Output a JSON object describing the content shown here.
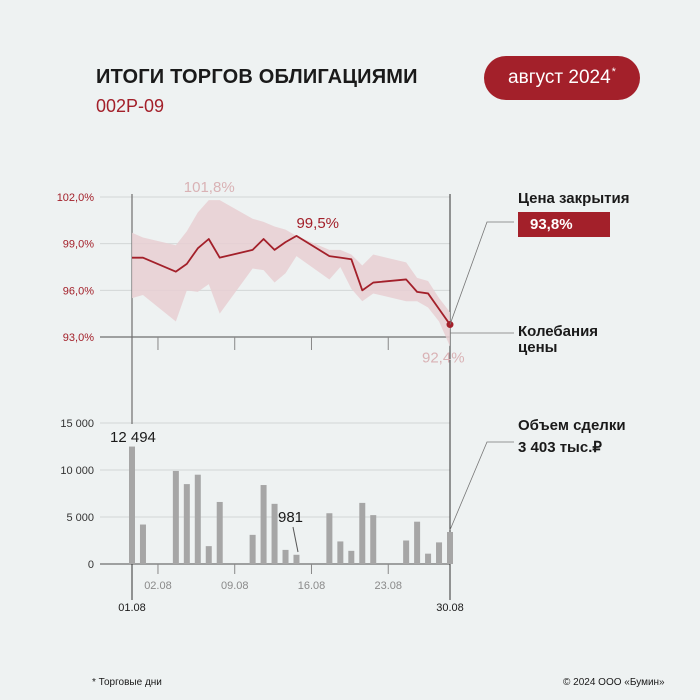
{
  "header": {
    "title": "ИТОГИ ТОРГОВ ОБЛИГАЦИЯМИ",
    "subtitle": "002Р-09",
    "badge_text": "август 2024",
    "badge_mark": "*"
  },
  "legend": {
    "close_price_label": "Цена закрытия",
    "close_price_value": "93,8%",
    "volatility_label_1": "Колебания",
    "volatility_label_2": "цены",
    "volume_label": "Объем сделки",
    "volume_value": "3 403 тыс.₽"
  },
  "footer": {
    "note": "* Торговые дни",
    "copyright": "© 2024 ООО «Бумин»"
  },
  "colors": {
    "accent": "#a3202a",
    "band": "#e8cfd2",
    "bar": "#a6a6a6",
    "muted": "#d9b2b5"
  },
  "chart_data": [
    {
      "type": "line",
      "ylabel": "",
      "ylim": [
        93,
        102
      ],
      "yticks": [
        "102,0%",
        "99,0%",
        "96,0%",
        "93,0%"
      ],
      "ytick_values": [
        102,
        99,
        96,
        93
      ],
      "x": [
        1,
        2,
        5,
        6,
        7,
        8,
        9,
        12,
        13,
        14,
        15,
        16,
        19,
        20,
        21,
        22,
        23,
        26,
        27,
        28,
        29,
        30
      ],
      "close": [
        98.1,
        98.1,
        97.2,
        97.7,
        98.7,
        99.3,
        98.1,
        98.6,
        99.3,
        98.6,
        99.1,
        99.5,
        98.2,
        98.1,
        98.0,
        96.0,
        96.5,
        96.7,
        95.9,
        95.8,
        94.8,
        93.8
      ],
      "high": [
        99.7,
        99.4,
        98.9,
        99.8,
        101.0,
        101.8,
        101.8,
        100.6,
        100.4,
        100.1,
        99.9,
        99.5,
        98.6,
        98.6,
        98.3,
        97.6,
        98.3,
        97.8,
        96.8,
        96.6,
        95.5,
        94.6
      ],
      "low": [
        95.5,
        95.7,
        94.0,
        96.0,
        95.9,
        96.4,
        94.5,
        97.4,
        97.3,
        96.5,
        97.1,
        98.2,
        96.7,
        97.5,
        96.1,
        95.3,
        95.8,
        95.3,
        95.3,
        94.9,
        94.0,
        92.4
      ],
      "annotations": [
        {
          "text": "101,8%",
          "x": 7,
          "y": 101.8
        },
        {
          "text": "99,5%",
          "x": 16,
          "y": 99.5
        },
        {
          "text": "92,4%",
          "x": 30,
          "y": 92.4
        }
      ]
    },
    {
      "type": "bar",
      "ylim": [
        0,
        15000
      ],
      "yticks": [
        "15 000",
        "10 000",
        "5 000",
        "0"
      ],
      "ytick_values": [
        15000,
        10000,
        5000,
        0
      ],
      "x": [
        1,
        2,
        5,
        6,
        7,
        8,
        9,
        12,
        13,
        14,
        15,
        16,
        19,
        20,
        21,
        22,
        23,
        26,
        27,
        28,
        29,
        30
      ],
      "values": [
        12494,
        4200,
        9900,
        8500,
        9500,
        1900,
        6600,
        3100,
        8400,
        6400,
        1500,
        981,
        5400,
        2400,
        1400,
        6500,
        5200,
        2500,
        4500,
        1100,
        2300,
        3403
      ],
      "xticks": [
        "02.08",
        "09.08",
        "16.08",
        "23.08"
      ],
      "xtick_values": [
        2,
        9,
        16,
        23
      ],
      "x_start_label": "01.08",
      "x_end_label": "30.08",
      "annotations": [
        {
          "text": "12 494",
          "x": 1,
          "y": 12494
        },
        {
          "text": "981",
          "x": 16,
          "y": 981
        }
      ]
    }
  ]
}
